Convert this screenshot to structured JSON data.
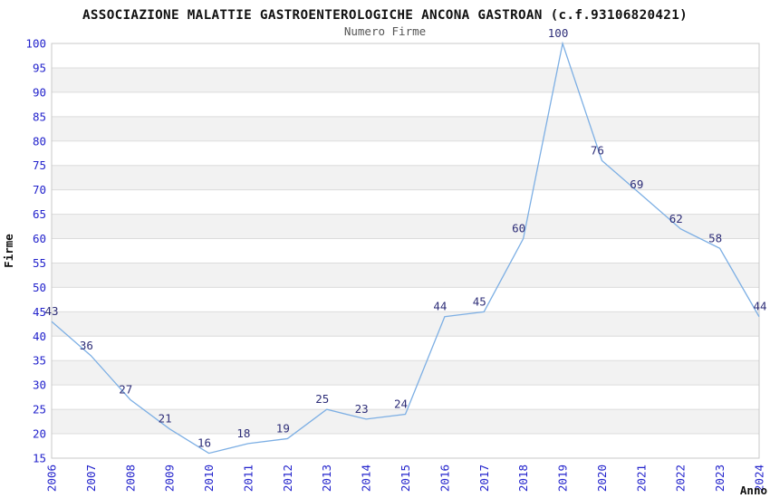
{
  "chart_data": {
    "type": "line",
    "title": "ASSOCIAZIONE MALATTIE GASTROENTEROLOGICHE ANCONA GASTROAN (c.f.93106820421)",
    "subtitle": "Numero Firme",
    "xlabel": "Anno",
    "ylabel": "Firme",
    "categories": [
      "2006",
      "2007",
      "2008",
      "2009",
      "2010",
      "2011",
      "2012",
      "2013",
      "2014",
      "2015",
      "2016",
      "2017",
      "2018",
      "2019",
      "2020",
      "2021",
      "2022",
      "2023",
      "2024"
    ],
    "values": [
      43,
      36,
      27,
      21,
      16,
      18,
      19,
      25,
      23,
      24,
      44,
      45,
      60,
      100,
      76,
      69,
      62,
      58,
      44
    ],
    "ylim": [
      15,
      100
    ],
    "ytick_step": 5,
    "grid": "horizontal",
    "legend": "none",
    "band_fill": "alternating",
    "data_labels_shown": true,
    "colors": {
      "line": "#7dafe4",
      "tick_labels": "#2323cc",
      "data_labels": "#2e2e78",
      "band": "#f2f2f2",
      "gridline": "#dcdcdc",
      "plot_border": "#c9c9c9",
      "title": "#111111",
      "subtitle": "#555555",
      "axis_titles": "#111111",
      "background": "#ffffff"
    }
  }
}
